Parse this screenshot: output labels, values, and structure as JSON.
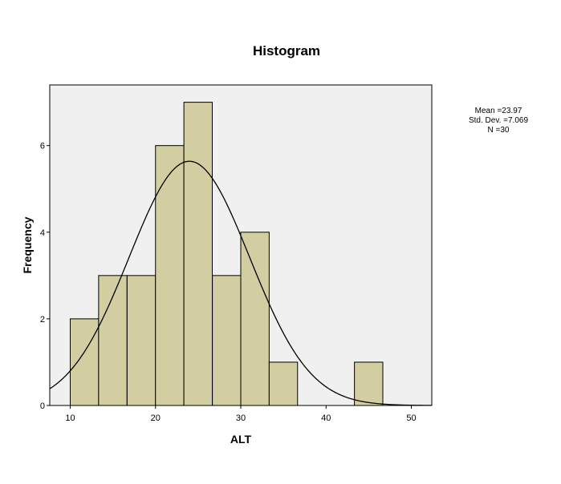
{
  "chart_data": {
    "type": "bar",
    "title": "Histogram",
    "xlabel": "ALT",
    "ylabel": "Frequency",
    "xlim": [
      7.6,
      52.4
    ],
    "ylim": [
      0,
      7.4
    ],
    "x_ticks": [
      10,
      20,
      30,
      40,
      50
    ],
    "y_ticks": [
      0,
      2,
      4,
      6
    ],
    "bin_width": 3.33,
    "bins": [
      {
        "start": 10.0,
        "count": 2
      },
      {
        "start": 13.33,
        "count": 3
      },
      {
        "start": 16.67,
        "count": 3
      },
      {
        "start": 20.0,
        "count": 6
      },
      {
        "start": 23.33,
        "count": 7
      },
      {
        "start": 26.67,
        "count": 3
      },
      {
        "start": 30.0,
        "count": 4
      },
      {
        "start": 33.33,
        "count": 1
      },
      {
        "start": 43.33,
        "count": 1
      }
    ],
    "normal_curve": {
      "mean": 23.97,
      "std_dev": 7.069,
      "n": 30
    },
    "stats_lines": [
      "Mean =23.97",
      "Std. Dev. =7.069",
      "N =30"
    ],
    "colors": {
      "bar_fill": "#d3cea1",
      "plot_bg": "#f0f0f0",
      "curve": "#000000"
    },
    "grid": false,
    "stats_placement": "top-right"
  }
}
